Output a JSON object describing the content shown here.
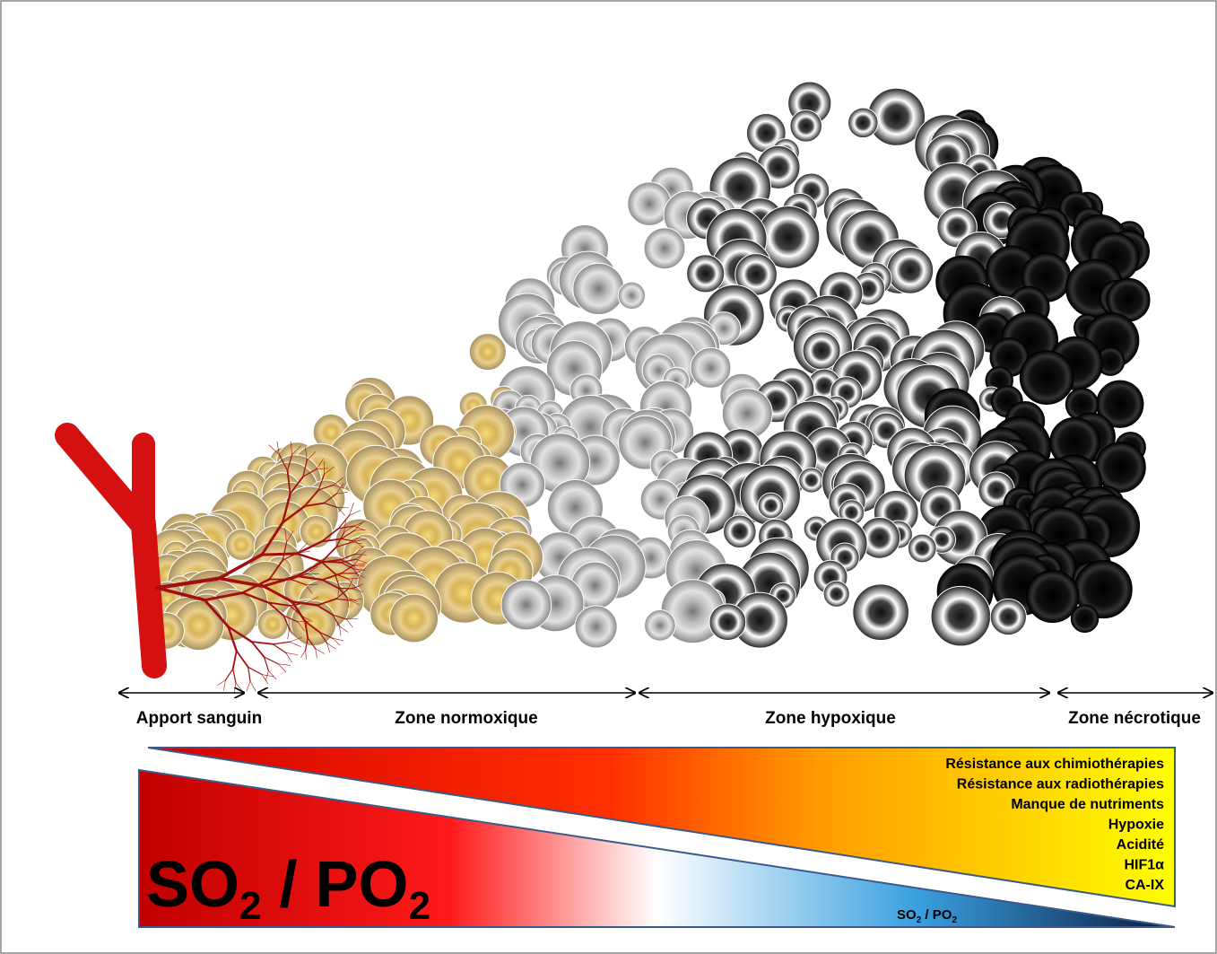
{
  "zones": [
    {
      "label": "Apport sanguin"
    },
    {
      "label": "Zone normoxique"
    },
    {
      "label": "Zone hypoxique"
    },
    {
      "label": "Zone nécrotique"
    }
  ],
  "effects": [
    "Résistance aux chimiothérapies",
    "Résistance aux radiothérapies",
    "Manque de nutriments",
    "Hypoxie",
    "Acidité",
    "HIF1α",
    "CA-IX"
  ],
  "oxygen_label": {
    "main": "SO",
    "sub1": "2",
    "middle": " / PO",
    "sub2": "2"
  },
  "oxygen_label_small": {
    "main": "SO",
    "sub1": "2",
    "middle": " / PO",
    "sub2": "2"
  }
}
